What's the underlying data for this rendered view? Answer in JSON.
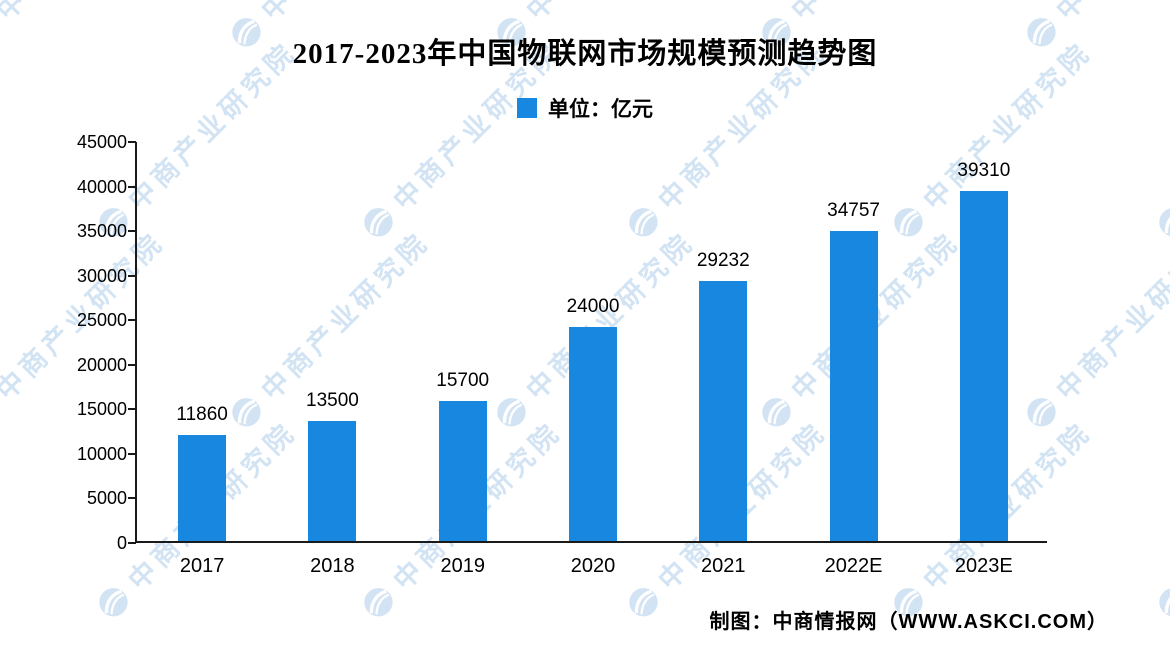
{
  "chart_data": {
    "type": "bar",
    "title": "2017-2023年中国物联网市场规模预测趋势图",
    "legend_label": "单位：亿元",
    "legend_position": "top-center",
    "categories": [
      "2017",
      "2018",
      "2019",
      "2020",
      "2021",
      "2022E",
      "2023E"
    ],
    "values": [
      11860,
      13500,
      15700,
      24000,
      29232,
      34757,
      39310
    ],
    "xlabel": "",
    "ylabel": "",
    "ylim": [
      0,
      45000
    ],
    "yticks": [
      0,
      5000,
      10000,
      15000,
      20000,
      25000,
      30000,
      35000,
      40000,
      45000
    ],
    "grid": false,
    "bar_color": "#1787e0"
  },
  "source": "制图：中商情报网（WWW.ASKCI.COM）",
  "watermark": {
    "text": "中商产业研究院",
    "logo": "zhongshang-swirl-logo",
    "color": "#aecdea"
  }
}
